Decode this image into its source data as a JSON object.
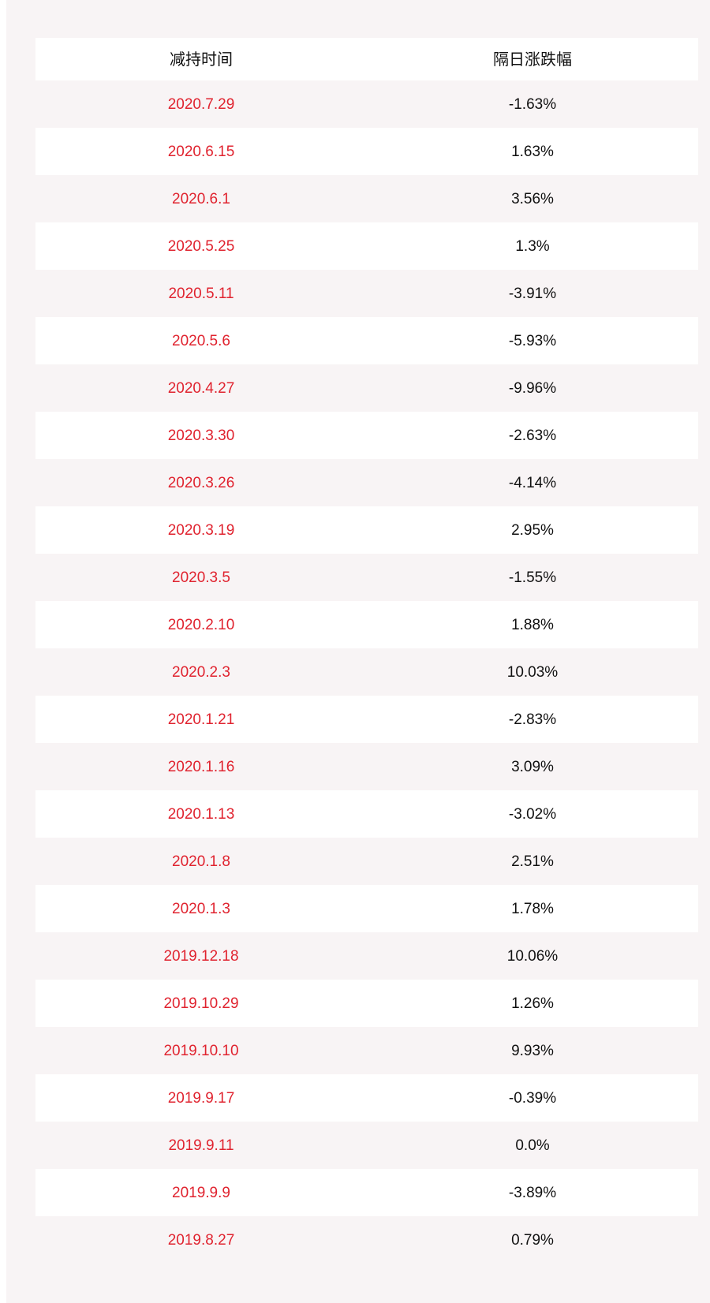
{
  "colors": {
    "panel_background": "#f8f4f5",
    "row_white": "#ffffff",
    "date_text": "#e0232f",
    "value_text": "#111111"
  },
  "table": {
    "headers": [
      "减持时间",
      "隔日涨跌幅"
    ],
    "rows": [
      {
        "date": "2020.7.29",
        "change": "-1.63%"
      },
      {
        "date": "2020.6.15",
        "change": "1.63%"
      },
      {
        "date": "2020.6.1",
        "change": "3.56%"
      },
      {
        "date": "2020.5.25",
        "change": "1.3%"
      },
      {
        "date": "2020.5.11",
        "change": "-3.91%"
      },
      {
        "date": "2020.5.6",
        "change": "-5.93%"
      },
      {
        "date": "2020.4.27",
        "change": "-9.96%"
      },
      {
        "date": "2020.3.30",
        "change": "-2.63%"
      },
      {
        "date": "2020.3.26",
        "change": "-4.14%"
      },
      {
        "date": "2020.3.19",
        "change": "2.95%"
      },
      {
        "date": "2020.3.5",
        "change": "-1.55%"
      },
      {
        "date": "2020.2.10",
        "change": "1.88%"
      },
      {
        "date": "2020.2.3",
        "change": "10.03%"
      },
      {
        "date": "2020.1.21",
        "change": "-2.83%"
      },
      {
        "date": "2020.1.16",
        "change": "3.09%"
      },
      {
        "date": "2020.1.13",
        "change": "-3.02%"
      },
      {
        "date": "2020.1.8",
        "change": "2.51%"
      },
      {
        "date": "2020.1.3",
        "change": "1.78%"
      },
      {
        "date": "2019.12.18",
        "change": "10.06%"
      },
      {
        "date": "2019.10.29",
        "change": "1.26%"
      },
      {
        "date": "2019.10.10",
        "change": "9.93%"
      },
      {
        "date": "2019.9.17",
        "change": "-0.39%"
      },
      {
        "date": "2019.9.11",
        "change": "0.0%"
      },
      {
        "date": "2019.9.9",
        "change": "-3.89%"
      },
      {
        "date": "2019.8.27",
        "change": "0.79%"
      }
    ]
  }
}
